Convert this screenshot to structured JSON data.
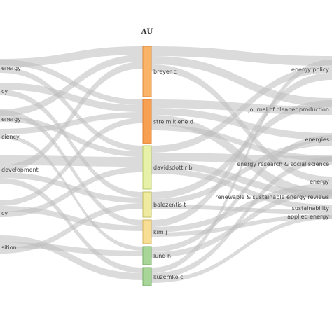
{
  "diagram": {
    "type": "sankey",
    "column_title": "AU",
    "authors": [
      {
        "label": "breyer c",
        "color": "#f9b46a",
        "stroke": "#e08a3a"
      },
      {
        "label": "streimikiene d",
        "color": "#f7a052",
        "stroke": "#dc7f30"
      },
      {
        "label": "davidsdottir b",
        "color": "#e7f2a8",
        "stroke": "#b5c868"
      },
      {
        "label": "balezentis t",
        "color": "#eeeaa0",
        "stroke": "#c2bd60"
      },
      {
        "label": "kim j",
        "color": "#f7de94",
        "stroke": "#d3b45c"
      },
      {
        "label": "lund h",
        "color": "#a8d598",
        "stroke": "#78ae68"
      },
      {
        "label": "kuzemko c",
        "color": "#a8d598",
        "stroke": "#78ae68"
      }
    ],
    "left_terms": [
      {
        "label": "energy"
      },
      {
        "label": "cy"
      },
      {
        "label": "energy"
      },
      {
        "label": "ciency"
      },
      {
        "label": "development"
      },
      {
        "label": "cy"
      },
      {
        "label": "sition"
      }
    ],
    "sources": [
      {
        "label": "energy policy"
      },
      {
        "label": "journal of cleaner production"
      },
      {
        "label": "energies"
      },
      {
        "label": "energy research & social science"
      },
      {
        "label": "energy"
      },
      {
        "label": "renewable & sustainable energy reviews"
      },
      {
        "label": "sustainability"
      },
      {
        "label": "applied energy"
      }
    ],
    "link_color": "#bdbdbd"
  }
}
